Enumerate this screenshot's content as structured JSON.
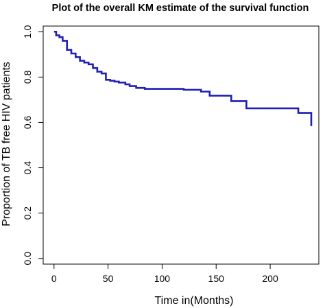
{
  "chart_data": {
    "type": "line",
    "title": "Plot of the overall KM estimate of the survival function",
    "xlabel": "Time in(Months)",
    "ylabel": "Proportion of TB free HIV patients",
    "xlim": [
      -10,
      245
    ],
    "ylim": [
      -0.025,
      1.025
    ],
    "x_ticks": [
      0,
      50,
      100,
      150,
      200
    ],
    "x_tick_labels": [
      "0",
      "50",
      "100",
      "150",
      "200"
    ],
    "y_ticks": [
      0.0,
      0.2,
      0.4,
      0.6,
      0.8,
      1.0
    ],
    "y_tick_labels": [
      "0.0",
      "0.2",
      "0.4",
      "0.6",
      "0.8",
      "1.0"
    ],
    "grid": false,
    "line_color": "#1f1fb4",
    "series": [
      {
        "step": true,
        "x": [
          0,
          2,
          5,
          8,
          12,
          16,
          20,
          24,
          28,
          32,
          36,
          40,
          44,
          48,
          52,
          56,
          60,
          66,
          70,
          76,
          84,
          120,
          136,
          144,
          164,
          178,
          226,
          238
        ],
        "y": [
          1.0,
          0.984,
          0.976,
          0.96,
          0.92,
          0.904,
          0.888,
          0.872,
          0.864,
          0.856,
          0.84,
          0.824,
          0.816,
          0.788,
          0.784,
          0.78,
          0.776,
          0.768,
          0.76,
          0.752,
          0.748,
          0.744,
          0.736,
          0.718,
          0.694,
          0.662,
          0.642,
          0.584
        ],
        "x_end": 238
      }
    ]
  }
}
